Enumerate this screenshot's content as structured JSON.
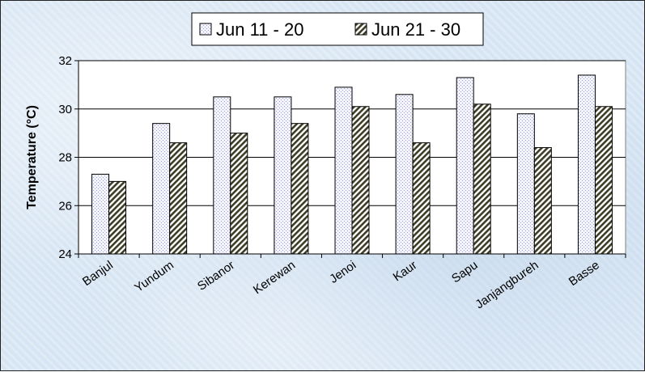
{
  "chart_data": {
    "type": "bar",
    "ylabel": "Temperature (°C)",
    "xlabel": "",
    "ylim": [
      24,
      32
    ],
    "yticks": [
      24,
      26,
      28,
      30,
      32
    ],
    "grid": true,
    "legend_position": "top-center",
    "categories": [
      "Banjul",
      "Yundum",
      "Sibanor",
      "Kerewan",
      "Jenoi",
      "Kaur",
      "Sapu",
      "Janjangbureh",
      "Basse"
    ],
    "series": [
      {
        "name": "Jun 11 - 20",
        "values": [
          27.3,
          29.4,
          30.5,
          30.5,
          30.9,
          30.6,
          31.3,
          29.8,
          31.4
        ],
        "color": "#eaeaf8",
        "pattern": "dots"
      },
      {
        "name": "Jun 21 - 30",
        "values": [
          27.0,
          28.6,
          29.0,
          29.4,
          30.1,
          28.6,
          30.2,
          28.4,
          30.1
        ],
        "color": "#6b6b4a",
        "pattern": "diagonal"
      }
    ],
    "colors": {
      "plot_background": "#ffffff",
      "grid": "#000000",
      "border": "#808080"
    }
  }
}
